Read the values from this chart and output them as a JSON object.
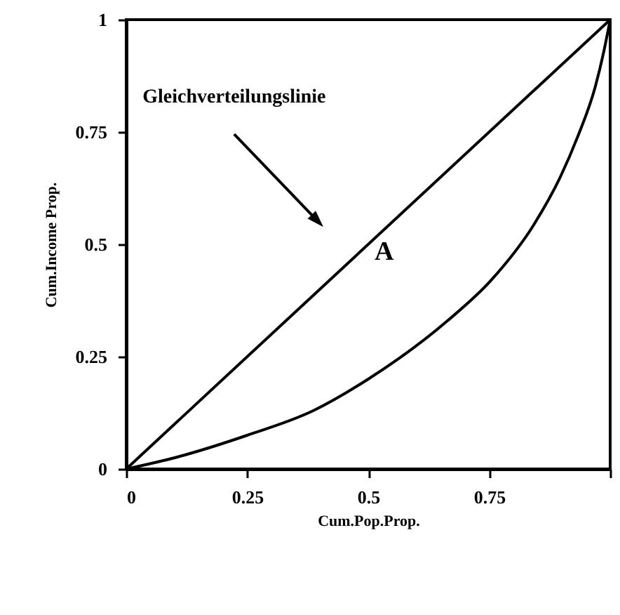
{
  "chart_data": {
    "type": "line",
    "xlabel": "Cum.Pop.Prop.",
    "ylabel": "Cum.Income Prop.",
    "xlim": [
      0,
      1
    ],
    "ylim": [
      0,
      1
    ],
    "xticks": [
      0,
      0.25,
      0.5,
      0.75,
      {
        "value": 1,
        "label": null
      }
    ],
    "yticks": [
      0,
      0.25,
      0.5,
      0.75,
      1
    ],
    "grid": false,
    "marker": "none",
    "line_style": "solid",
    "annotations": [
      "Gleichverteilungslinie",
      "A"
    ],
    "series": [
      {
        "color": "#000000",
        "x": [
          0,
          1
        ],
        "values": [
          0,
          1
        ]
      },
      {
        "color": "#000000",
        "x": [
          0,
          0.1,
          0.25,
          0.387,
          0.5,
          0.664,
          0.754,
          0.843,
          0.897,
          0.933,
          0.969,
          0.987,
          1
        ],
        "values": [
          0,
          0.025,
          0.075,
          0.13,
          0.2,
          0.33,
          0.42,
          0.545,
          0.65,
          0.74,
          0.85,
          0.93,
          1
        ]
      }
    ]
  }
}
